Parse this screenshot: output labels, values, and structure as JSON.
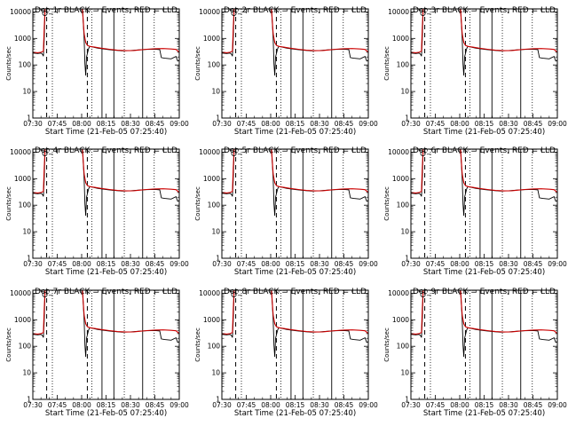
{
  "chart_data": [
    {
      "type": "line",
      "title": "Det_1r BLACK = Events, RED = LLD"
    },
    {
      "type": "line",
      "title": "Det_2r BLACK = Events, RED = LLD"
    },
    {
      "type": "line",
      "title": "Det_3r BLACK = Events, RED = LLD"
    },
    {
      "type": "line",
      "title": "Det_4r BLACK = Events, RED = LLD"
    },
    {
      "type": "line",
      "title": "Det_5r BLACK = Events, RED = LLD"
    },
    {
      "type": "line",
      "title": "Det_6r BLACK = Events, RED = LLD"
    },
    {
      "type": "line",
      "title": "Det_7r BLACK = Events, RED = LLD"
    },
    {
      "type": "line",
      "title": "Det_8r BLACK = Events, RED = LLD"
    },
    {
      "type": "line",
      "title": "Det_9r BLACK = Events, RED = LLD"
    }
  ],
  "shared": {
    "xlabel": "Start Time (21-Feb-05 07:25:40)",
    "ylabel": "Counts/sec",
    "x_ticks": [
      "07:30",
      "07:45",
      "08:00",
      "08:15",
      "08:30",
      "08:45",
      "09:00"
    ],
    "x_tick_minutes": [
      0,
      15,
      30,
      45,
      60,
      75,
      90
    ],
    "xlim_minutes": [
      0,
      90
    ],
    "y_ticks": [
      "1",
      "10",
      "100",
      "1000",
      "10000"
    ],
    "y_tick_values": [
      1,
      10,
      100,
      1000,
      10000
    ],
    "ylim": [
      1,
      13000
    ],
    "y_scale": "log",
    "dashed_lines_minutes": [
      8.5,
      33.5
    ],
    "dotted_lines_minutes": [
      12.0,
      36.3,
      56.2,
      74.6
    ],
    "solid_lines_minutes": [
      42.5,
      49.8,
      67.5
    ],
    "marker_minutes": 7.4,
    "series": [
      {
        "color": "#000000",
        "points": [
          [
            0,
            280
          ],
          [
            3,
            270
          ],
          [
            5,
            280
          ],
          [
            6,
            250
          ],
          [
            6.5,
            215
          ],
          [
            7,
            900
          ],
          [
            7.5,
            13000
          ],
          [
            30.5,
            13000
          ],
          [
            31.5,
            1000
          ],
          [
            32,
            110
          ],
          [
            32.5,
            40
          ],
          [
            33,
            200
          ],
          [
            34.3,
            420
          ],
          [
            35,
            500
          ],
          [
            37,
            470
          ],
          [
            40,
            430
          ],
          [
            45,
            390
          ],
          [
            50,
            360
          ],
          [
            55,
            340
          ],
          [
            60,
            350
          ],
          [
            65,
            370
          ],
          [
            70,
            385
          ],
          [
            75,
            395
          ],
          [
            78,
            380
          ],
          [
            79,
            190
          ],
          [
            81,
            180
          ],
          [
            85,
            170
          ],
          [
            88,
            210
          ],
          [
            89,
            140
          ],
          [
            90,
            150
          ]
        ]
      },
      {
        "color": "#cc0000",
        "points": [
          [
            0,
            300
          ],
          [
            3,
            290
          ],
          [
            5,
            300
          ],
          [
            6.5,
            330
          ],
          [
            7,
            2500
          ],
          [
            7.5,
            13000
          ],
          [
            30.5,
            13000
          ],
          [
            31.5,
            1500
          ],
          [
            32.5,
            700
          ],
          [
            33.5,
            550
          ],
          [
            35,
            500
          ],
          [
            38,
            470
          ],
          [
            42,
            430
          ],
          [
            47,
            390
          ],
          [
            52,
            360
          ],
          [
            57,
            345
          ],
          [
            62,
            350
          ],
          [
            66,
            370
          ],
          [
            70,
            390
          ],
          [
            75,
            410
          ],
          [
            80,
            415
          ],
          [
            85,
            400
          ],
          [
            88,
            385
          ],
          [
            90,
            300
          ]
        ]
      }
    ]
  }
}
